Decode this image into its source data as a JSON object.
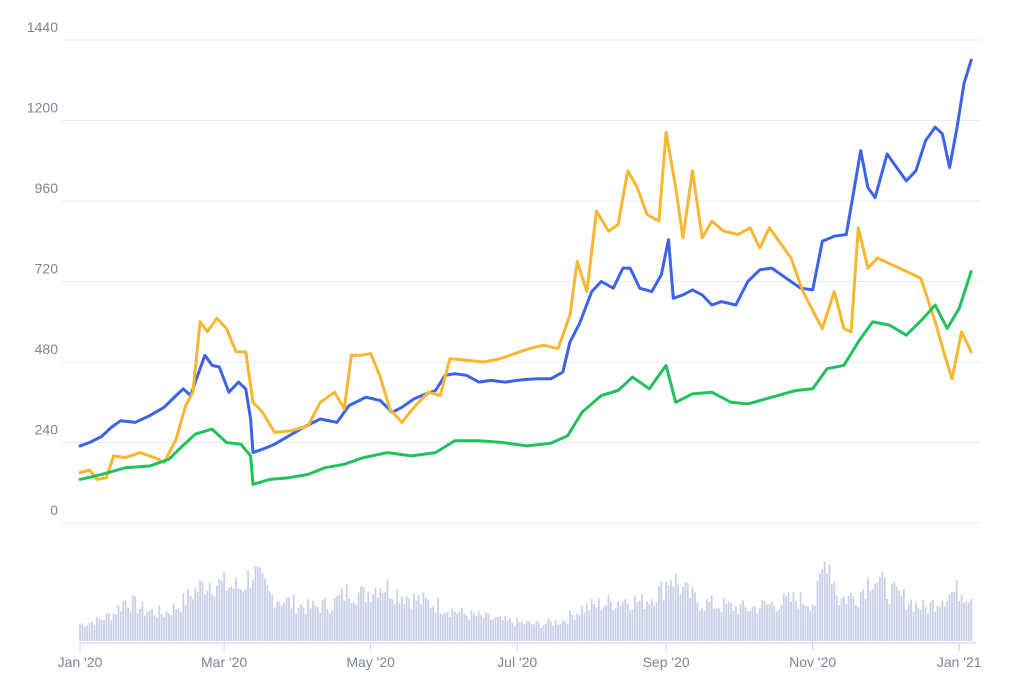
{
  "chart_data": {
    "type": "line",
    "title": "",
    "xlabel": "",
    "ylabel": "",
    "ylim": [
      0,
      1440
    ],
    "yticks": [
      0,
      240,
      480,
      720,
      960,
      1200,
      1440
    ],
    "xlim": [
      "2020-01-01",
      "2021-01-08"
    ],
    "xticks": [
      {
        "date": "2020-01-01",
        "label": "Jan '20"
      },
      {
        "date": "2020-03-01",
        "label": "Mar '20"
      },
      {
        "date": "2020-05-01",
        "label": "May '20"
      },
      {
        "date": "2020-07-01",
        "label": "Jul '20"
      },
      {
        "date": "2020-09-01",
        "label": "Sep '20"
      },
      {
        "date": "2020-11-01",
        "label": "Nov '20"
      },
      {
        "date": "2021-01-01",
        "label": "Jan '21"
      }
    ],
    "grid": true,
    "legend": "none",
    "series": [
      {
        "color": "#3d63ea",
        "points": [
          [
            "2020-01-01",
            230
          ],
          [
            "2020-01-05",
            240
          ],
          [
            "2020-01-10",
            258
          ],
          [
            "2020-01-14",
            285
          ],
          [
            "2020-01-18",
            305
          ],
          [
            "2020-01-24",
            300
          ],
          [
            "2020-01-30",
            320
          ],
          [
            "2020-02-05",
            345
          ],
          [
            "2020-02-10",
            380
          ],
          [
            "2020-02-13",
            400
          ],
          [
            "2020-02-16",
            380
          ],
          [
            "2020-02-19",
            440
          ],
          [
            "2020-02-22",
            500
          ],
          [
            "2020-02-25",
            470
          ],
          [
            "2020-02-28",
            465
          ],
          [
            "2020-03-03",
            390
          ],
          [
            "2020-03-07",
            420
          ],
          [
            "2020-03-10",
            400
          ],
          [
            "2020-03-12",
            310
          ],
          [
            "2020-03-13",
            210
          ],
          [
            "2020-03-17",
            220
          ],
          [
            "2020-03-22",
            235
          ],
          [
            "2020-03-28",
            260
          ],
          [
            "2020-04-03",
            285
          ],
          [
            "2020-04-10",
            310
          ],
          [
            "2020-04-17",
            300
          ],
          [
            "2020-04-22",
            350
          ],
          [
            "2020-04-29",
            375
          ],
          [
            "2020-05-05",
            365
          ],
          [
            "2020-05-10",
            330
          ],
          [
            "2020-05-14",
            345
          ],
          [
            "2020-05-19",
            370
          ],
          [
            "2020-05-24",
            385
          ],
          [
            "2020-05-28",
            395
          ],
          [
            "2020-06-01",
            440
          ],
          [
            "2020-06-05",
            445
          ],
          [
            "2020-06-10",
            440
          ],
          [
            "2020-06-15",
            420
          ],
          [
            "2020-06-20",
            425
          ],
          [
            "2020-06-26",
            420
          ],
          [
            "2020-07-01",
            425
          ],
          [
            "2020-07-05",
            428
          ],
          [
            "2020-07-10",
            430
          ],
          [
            "2020-07-15",
            430
          ],
          [
            "2020-07-20",
            450
          ],
          [
            "2020-07-23",
            540
          ],
          [
            "2020-07-27",
            595
          ],
          [
            "2020-08-01",
            690
          ],
          [
            "2020-08-05",
            720
          ],
          [
            "2020-08-10",
            700
          ],
          [
            "2020-08-14",
            760
          ],
          [
            "2020-08-17",
            760
          ],
          [
            "2020-08-21",
            700
          ],
          [
            "2020-08-26",
            690
          ],
          [
            "2020-08-30",
            740
          ],
          [
            "2020-09-02",
            845
          ],
          [
            "2020-09-04",
            670
          ],
          [
            "2020-09-08",
            680
          ],
          [
            "2020-09-12",
            695
          ],
          [
            "2020-09-16",
            680
          ],
          [
            "2020-09-20",
            650
          ],
          [
            "2020-09-24",
            660
          ],
          [
            "2020-09-30",
            650
          ],
          [
            "2020-10-05",
            720
          ],
          [
            "2020-10-10",
            755
          ],
          [
            "2020-10-15",
            760
          ],
          [
            "2020-10-19",
            740
          ],
          [
            "2020-10-23",
            720
          ],
          [
            "2020-10-27",
            700
          ],
          [
            "2020-11-01",
            695
          ],
          [
            "2020-11-05",
            840
          ],
          [
            "2020-11-10",
            855
          ],
          [
            "2020-11-15",
            860
          ],
          [
            "2020-11-21",
            1110
          ],
          [
            "2020-11-24",
            1000
          ],
          [
            "2020-11-27",
            970
          ],
          [
            "2020-12-02",
            1100
          ],
          [
            "2020-12-06",
            1060
          ],
          [
            "2020-12-10",
            1020
          ],
          [
            "2020-12-14",
            1050
          ],
          [
            "2020-12-18",
            1140
          ],
          [
            "2020-12-22",
            1180
          ],
          [
            "2020-12-25",
            1160
          ],
          [
            "2020-12-28",
            1060
          ],
          [
            "2020-12-31",
            1175
          ],
          [
            "2021-01-03",
            1310
          ],
          [
            "2021-01-06",
            1380
          ]
        ]
      },
      {
        "color": "#f7b731",
        "points": [
          [
            "2020-01-01",
            150
          ],
          [
            "2020-01-05",
            158
          ],
          [
            "2020-01-08",
            130
          ],
          [
            "2020-01-12",
            135
          ],
          [
            "2020-01-15",
            200
          ],
          [
            "2020-01-20",
            195
          ],
          [
            "2020-01-26",
            210
          ],
          [
            "2020-02-01",
            195
          ],
          [
            "2020-02-05",
            180
          ],
          [
            "2020-02-10",
            250
          ],
          [
            "2020-02-14",
            350
          ],
          [
            "2020-02-17",
            390
          ],
          [
            "2020-02-20",
            600
          ],
          [
            "2020-02-23",
            570
          ],
          [
            "2020-02-27",
            610
          ],
          [
            "2020-03-02",
            580
          ],
          [
            "2020-03-06",
            510
          ],
          [
            "2020-03-10",
            510
          ],
          [
            "2020-03-13",
            360
          ],
          [
            "2020-03-17",
            330
          ],
          [
            "2020-03-22",
            270
          ],
          [
            "2020-03-29",
            275
          ],
          [
            "2020-04-05",
            290
          ],
          [
            "2020-04-10",
            360
          ],
          [
            "2020-04-16",
            390
          ],
          [
            "2020-04-20",
            340
          ],
          [
            "2020-04-23",
            500
          ],
          [
            "2020-04-27",
            500
          ],
          [
            "2020-05-01",
            505
          ],
          [
            "2020-05-05",
            435
          ],
          [
            "2020-05-09",
            340
          ],
          [
            "2020-05-14",
            300
          ],
          [
            "2020-05-19",
            345
          ],
          [
            "2020-05-25",
            390
          ],
          [
            "2020-05-30",
            380
          ],
          [
            "2020-06-03",
            490
          ],
          [
            "2020-06-10",
            485
          ],
          [
            "2020-06-17",
            480
          ],
          [
            "2020-06-24",
            490
          ],
          [
            "2020-06-30",
            505
          ],
          [
            "2020-07-06",
            520
          ],
          [
            "2020-07-12",
            530
          ],
          [
            "2020-07-18",
            520
          ],
          [
            "2020-07-23",
            620
          ],
          [
            "2020-07-26",
            780
          ],
          [
            "2020-07-30",
            690
          ],
          [
            "2020-08-03",
            930
          ],
          [
            "2020-08-08",
            870
          ],
          [
            "2020-08-12",
            890
          ],
          [
            "2020-08-16",
            1050
          ],
          [
            "2020-08-20",
            1000
          ],
          [
            "2020-08-24",
            920
          ],
          [
            "2020-08-29",
            900
          ],
          [
            "2020-09-01",
            1165
          ],
          [
            "2020-09-05",
            1000
          ],
          [
            "2020-09-08",
            850
          ],
          [
            "2020-09-12",
            1050
          ],
          [
            "2020-09-16",
            850
          ],
          [
            "2020-09-20",
            900
          ],
          [
            "2020-09-25",
            870
          ],
          [
            "2020-10-01",
            860
          ],
          [
            "2020-10-06",
            880
          ],
          [
            "2020-10-10",
            820
          ],
          [
            "2020-10-14",
            880
          ],
          [
            "2020-10-19",
            830
          ],
          [
            "2020-10-23",
            790
          ],
          [
            "2020-10-28",
            690
          ],
          [
            "2020-11-02",
            620
          ],
          [
            "2020-11-05",
            580
          ],
          [
            "2020-11-10",
            690
          ],
          [
            "2020-11-14",
            580
          ],
          [
            "2020-11-17",
            570
          ],
          [
            "2020-11-20",
            880
          ],
          [
            "2020-11-24",
            760
          ],
          [
            "2020-11-28",
            790
          ],
          [
            "2020-12-04",
            770
          ],
          [
            "2020-12-10",
            750
          ],
          [
            "2020-12-16",
            730
          ],
          [
            "2020-12-22",
            600
          ],
          [
            "2020-12-26",
            500
          ],
          [
            "2020-12-29",
            430
          ],
          [
            "2021-01-02",
            570
          ],
          [
            "2021-01-06",
            510
          ]
        ]
      },
      {
        "color": "#21c25e",
        "points": [
          [
            "2020-01-01",
            130
          ],
          [
            "2020-01-10",
            145
          ],
          [
            "2020-01-20",
            165
          ],
          [
            "2020-01-30",
            170
          ],
          [
            "2020-02-07",
            190
          ],
          [
            "2020-02-12",
            225
          ],
          [
            "2020-02-18",
            265
          ],
          [
            "2020-02-25",
            280
          ],
          [
            "2020-03-02",
            240
          ],
          [
            "2020-03-08",
            235
          ],
          [
            "2020-03-12",
            200
          ],
          [
            "2020-03-13",
            115
          ],
          [
            "2020-03-20",
            130
          ],
          [
            "2020-03-28",
            135
          ],
          [
            "2020-04-05",
            145
          ],
          [
            "2020-04-12",
            165
          ],
          [
            "2020-04-20",
            175
          ],
          [
            "2020-04-28",
            195
          ],
          [
            "2020-05-08",
            210
          ],
          [
            "2020-05-18",
            200
          ],
          [
            "2020-05-28",
            210
          ],
          [
            "2020-06-05",
            245
          ],
          [
            "2020-06-15",
            245
          ],
          [
            "2020-06-25",
            240
          ],
          [
            "2020-07-05",
            230
          ],
          [
            "2020-07-15",
            238
          ],
          [
            "2020-07-22",
            260
          ],
          [
            "2020-07-28",
            330
          ],
          [
            "2020-08-05",
            380
          ],
          [
            "2020-08-12",
            395
          ],
          [
            "2020-08-18",
            435
          ],
          [
            "2020-08-25",
            400
          ],
          [
            "2020-09-01",
            470
          ],
          [
            "2020-09-05",
            360
          ],
          [
            "2020-09-12",
            385
          ],
          [
            "2020-09-20",
            390
          ],
          [
            "2020-09-28",
            360
          ],
          [
            "2020-10-05",
            355
          ],
          [
            "2020-10-15",
            375
          ],
          [
            "2020-10-25",
            395
          ],
          [
            "2020-11-01",
            400
          ],
          [
            "2020-11-07",
            460
          ],
          [
            "2020-11-14",
            470
          ],
          [
            "2020-11-20",
            540
          ],
          [
            "2020-11-26",
            600
          ],
          [
            "2020-12-03",
            590
          ],
          [
            "2020-12-10",
            560
          ],
          [
            "2020-12-17",
            610
          ],
          [
            "2020-12-22",
            650
          ],
          [
            "2020-12-27",
            580
          ],
          [
            "2021-01-01",
            640
          ],
          [
            "2021-01-06",
            750
          ]
        ]
      }
    ],
    "volume": {
      "color": "#c9d1ea",
      "note_unit": "relative 0-1",
      "points": [
        [
          "2020-01-01",
          0.18
        ],
        [
          "2020-01-08",
          0.22
        ],
        [
          "2020-01-15",
          0.3
        ],
        [
          "2020-01-20",
          0.45
        ],
        [
          "2020-01-28",
          0.33
        ],
        [
          "2020-02-05",
          0.3
        ],
        [
          "2020-02-12",
          0.4
        ],
        [
          "2020-02-18",
          0.55
        ],
        [
          "2020-02-24",
          0.65
        ],
        [
          "2020-03-01",
          0.6
        ],
        [
          "2020-03-08",
          0.58
        ],
        [
          "2020-03-13",
          0.75
        ],
        [
          "2020-03-20",
          0.5
        ],
        [
          "2020-03-28",
          0.42
        ],
        [
          "2020-04-05",
          0.36
        ],
        [
          "2020-04-15",
          0.4
        ],
        [
          "2020-04-22",
          0.55
        ],
        [
          "2020-04-28",
          0.5
        ],
        [
          "2020-05-05",
          0.62
        ],
        [
          "2020-05-10",
          0.55
        ],
        [
          "2020-05-20",
          0.45
        ],
        [
          "2020-05-30",
          0.38
        ],
        [
          "2020-06-08",
          0.3
        ],
        [
          "2020-06-20",
          0.24
        ],
        [
          "2020-07-01",
          0.2
        ],
        [
          "2020-07-10",
          0.18
        ],
        [
          "2020-07-20",
          0.22
        ],
        [
          "2020-07-28",
          0.35
        ],
        [
          "2020-08-05",
          0.4
        ],
        [
          "2020-08-15",
          0.45
        ],
        [
          "2020-08-22",
          0.42
        ],
        [
          "2020-08-30",
          0.55
        ],
        [
          "2020-09-03",
          0.72
        ],
        [
          "2020-09-08",
          0.55
        ],
        [
          "2020-09-15",
          0.42
        ],
        [
          "2020-09-25",
          0.38
        ],
        [
          "2020-10-05",
          0.35
        ],
        [
          "2020-10-15",
          0.4
        ],
        [
          "2020-10-25",
          0.45
        ],
        [
          "2020-11-02",
          0.42
        ],
        [
          "2020-11-07",
          0.95
        ],
        [
          "2020-11-12",
          0.45
        ],
        [
          "2020-11-20",
          0.5
        ],
        [
          "2020-11-26",
          0.72
        ],
        [
          "2020-12-02",
          0.55
        ],
        [
          "2020-12-10",
          0.45
        ],
        [
          "2020-12-18",
          0.35
        ],
        [
          "2020-12-25",
          0.48
        ],
        [
          "2021-01-01",
          0.55
        ],
        [
          "2021-01-06",
          0.5
        ]
      ]
    }
  }
}
